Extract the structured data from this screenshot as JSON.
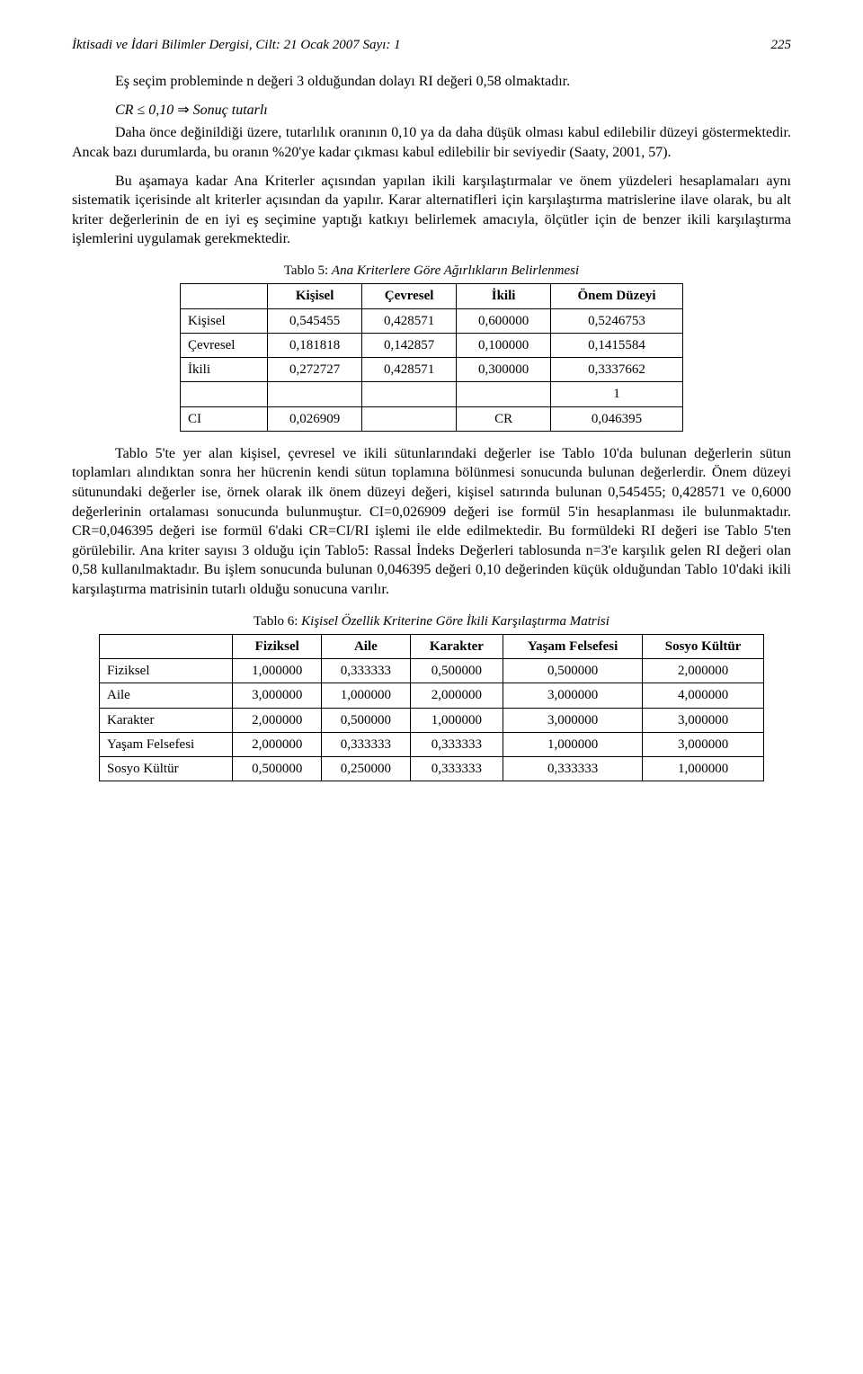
{
  "header": {
    "journal": "İktisadi ve İdari Bilimler Dergisi, Cilt: 21  Ocak 2007  Sayı: 1",
    "page": "225"
  },
  "para1": "Eş seçim probleminde n değeri 3 olduğundan dolayı RI değeri 0,58 olmaktadır.",
  "math1": {
    "lhs": "CR ≤ 0,10",
    "arrow": " ⇒ ",
    "rhs": "Sonuç tutarlı"
  },
  "para2": "Daha önce değinildiği üzere, tutarlılık oranının 0,10 ya da daha düşük olması kabul edilebilir düzeyi göstermektedir. Ancak bazı durumlarda, bu oranın %20'ye kadar çıkması kabul edilebilir bir seviyedir (Saaty, 2001, 57).",
  "para3": "Bu aşamaya kadar Ana Kriterler açısından yapılan ikili karşılaştırmalar ve önem yüzdeleri hesaplamaları aynı sistematik içerisinde alt kriterler açısından da yapılır. Karar alternatifleri için karşılaştırma matrislerine ilave olarak, bu alt kriter değerlerinin de en iyi eş seçimine yaptığı katkıyı belirlemek amacıyla, ölçütler için de benzer ikili karşılaştırma işlemlerini uygulamak gerekmektedir.",
  "table5": {
    "caption_num": "Tablo 5: ",
    "caption_title": "Ana Kriterlere Göre Ağırlıkların Belirlenmesi",
    "columns": [
      "",
      "Kişisel",
      "Çevresel",
      "İkili",
      "Önem Düzeyi"
    ],
    "rows": [
      [
        "Kişisel",
        "0,545455",
        "0,428571",
        "0,600000",
        "0,5246753"
      ],
      [
        "Çevresel",
        "0,181818",
        "0,142857",
        "0,100000",
        "0,1415584"
      ],
      [
        "İkili",
        "0,272727",
        "0,428571",
        "0,300000",
        "0,3337662"
      ]
    ],
    "sumrow": [
      "",
      "",
      "",
      "",
      "1"
    ],
    "cirow": [
      "CI",
      "0,026909",
      "",
      "CR",
      "0,046395"
    ],
    "border_color": "#000000",
    "background_color": "#ffffff",
    "font_size": 15
  },
  "para4": "Tablo 5'te yer alan kişisel, çevresel ve ikili sütunlarındaki değerler ise Tablo 10'da bulunan değerlerin sütun toplamları alındıktan sonra her hücrenin kendi sütun toplamına bölünmesi sonucunda bulunan değerlerdir. Önem düzeyi sütunundaki değerler ise, örnek olarak ilk önem düzeyi değeri, kişisel satırında bulunan 0,545455; 0,428571 ve 0,6000 değerlerinin ortalaması sonucunda bulunmuştur. CI=0,026909 değeri ise formül 5'in hesaplanması ile bulunmaktadır. CR=0,046395 değeri ise formül 6'daki CR=CI/RI işlemi ile elde edilmektedir. Bu formüldeki RI değeri ise Tablo 5'ten görülebilir. Ana kriter sayısı 3 olduğu için Tablo5: Rassal İndeks Değerleri tablosunda n=3'e karşılık gelen RI değeri olan 0,58 kullanılmaktadır. Bu işlem sonucunda bulunan 0,046395 değeri 0,10 değerinden küçük olduğundan Tablo 10'daki ikili karşılaştırma matrisinin tutarlı olduğu sonucuna varılır.",
  "table6": {
    "caption_num": "Tablo 6: ",
    "caption_title": "Kişisel Özellik Kriterine Göre İkili Karşılaştırma Matrisi",
    "columns": [
      "",
      "Fiziksel",
      "Aile",
      "Karakter",
      "Yaşam Felsefesi",
      "Sosyo Kültür"
    ],
    "rows": [
      [
        "Fiziksel",
        "1,000000",
        "0,333333",
        "0,500000",
        "0,500000",
        "2,000000"
      ],
      [
        "Aile",
        "3,000000",
        "1,000000",
        "2,000000",
        "3,000000",
        "4,000000"
      ],
      [
        "Karakter",
        "2,000000",
        "0,500000",
        "1,000000",
        "3,000000",
        "3,000000"
      ],
      [
        "Yaşam Felsefesi",
        "2,000000",
        "0,333333",
        "0,333333",
        "1,000000",
        "3,000000"
      ],
      [
        "Sosyo Kültür",
        "0,500000",
        "0,250000",
        "0,333333",
        "0,333333",
        "1,000000"
      ]
    ],
    "border_color": "#000000",
    "background_color": "#ffffff",
    "font_size": 15
  }
}
